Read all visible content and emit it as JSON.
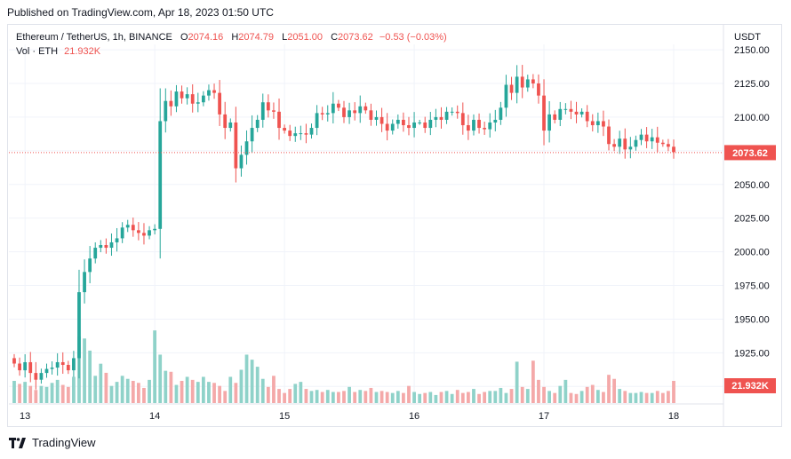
{
  "published": "Published on TradingView.com, Apr 18, 2023 01:50 UTC",
  "legend": {
    "symbol": "Ethereum / TetherUS, 1h, BINANCE",
    "o_label": "O",
    "o_value": "2074.16",
    "h_label": "H",
    "h_value": "2074.79",
    "l_label": "L",
    "l_value": "2051.00",
    "c_label": "C",
    "c_value": "2073.62",
    "change": "−0.53 (−0.03%)",
    "vol_label": "Vol · ETH",
    "vol_value": "21.932K"
  },
  "axis": {
    "unit": "USDT",
    "last_price_label": "2073.62",
    "last_volume_label": "21.932K"
  },
  "footer": {
    "brand": "TradingView"
  },
  "colors": {
    "up": "#26a69a",
    "down": "#ef5350",
    "up_vol": "#8fd2c9",
    "down_vol": "#f4a9a9",
    "grid": "#f0f3fa",
    "text": "#131722"
  },
  "chart_data": {
    "type": "candlestick",
    "title": "Ethereum / TetherUS, 1h, BINANCE",
    "ylabel": "USDT",
    "ylim": [
      1887,
      2154
    ],
    "y_ticks": [
      1900,
      1925,
      1950,
      1975,
      2000,
      2025,
      2050,
      2075,
      2100,
      2125,
      2150
    ],
    "y_tick_labels": [
      "1900.00",
      "1925.00",
      "1950.00",
      "1975.00",
      "2000.00",
      "2025.00",
      "2050.00",
      "2075.00",
      "2100.00",
      "2125.00",
      "2150.00"
    ],
    "x_ticks": [
      {
        "label": "13",
        "index": 2
      },
      {
        "label": "14",
        "index": 26
      },
      {
        "label": "15",
        "index": 50
      },
      {
        "label": "16",
        "index": 74
      },
      {
        "label": "17",
        "index": 98
      },
      {
        "label": "18",
        "index": 122
      }
    ],
    "last_price": 2073.62,
    "last_volume": 21.932,
    "volume_unit": "K ETH",
    "closes": [
      1917,
      1912,
      1918,
      1910,
      1905,
      1910,
      1913,
      1914,
      1918,
      1916,
      1912,
      1921,
      1970,
      1985,
      1995,
      2003,
      2005,
      2003,
      2007,
      2010,
      2018,
      2020,
      2016,
      2014,
      2012,
      2016,
      2017,
      2097,
      2112,
      2108,
      2119,
      2114,
      2117,
      2110,
      2111,
      2116,
      2120,
      2118,
      2102,
      2092,
      2096,
      2062,
      2072,
      2082,
      2092,
      2098,
      2111,
      2105,
      2104,
      2092,
      2090,
      2086,
      2088,
      2088,
      2087,
      2092,
      2103,
      2102,
      2103,
      2110,
      2107,
      2100,
      2105,
      2103,
      2108,
      2105,
      2098,
      2100,
      2095,
      2090,
      2095,
      2098,
      2094,
      2092,
      2096,
      2096,
      2092,
      2098,
      2100,
      2098,
      2104,
      2104,
      2103,
      2094,
      2090,
      2098,
      2092,
      2091,
      2096,
      2098,
      2107,
      2124,
      2118,
      2130,
      2122,
      2128,
      2125,
      2116,
      2090,
      2102,
      2098,
      2106,
      2106,
      2104,
      2102,
      2104,
      2097,
      2094,
      2097,
      2093,
      2080,
      2078,
      2084,
      2076,
      2078,
      2083,
      2087,
      2082,
      2085,
      2081,
      2080,
      2078,
      2074
    ],
    "volumes": [
      22,
      19,
      21,
      17,
      13,
      17,
      16,
      20,
      23,
      18,
      16,
      26,
      66,
      64,
      52,
      27,
      39,
      30,
      17,
      21,
      27,
      24,
      22,
      20,
      15,
      23,
      72,
      48,
      32,
      31,
      18,
      22,
      26,
      23,
      21,
      26,
      21,
      20,
      17,
      12,
      26,
      20,
      33,
      48,
      43,
      36,
      24,
      16,
      27,
      14,
      10,
      14,
      19,
      21,
      14,
      12,
      13,
      11,
      13,
      11,
      11,
      12,
      16,
      11,
      13,
      12,
      15,
      11,
      12,
      11,
      10,
      12,
      10,
      17,
      11,
      9,
      10,
      11,
      8,
      11,
      12,
      9,
      13,
      10,
      11,
      14,
      9,
      11,
      12,
      12,
      15,
      10,
      14,
      41,
      16,
      14,
      42,
      23,
      16,
      12,
      10,
      17,
      23,
      10,
      9,
      12,
      16,
      18,
      13,
      11,
      28,
      24,
      14,
      12,
      10,
      10,
      11,
      10,
      10,
      12,
      10,
      12,
      22
    ],
    "vol_max": 110
  }
}
